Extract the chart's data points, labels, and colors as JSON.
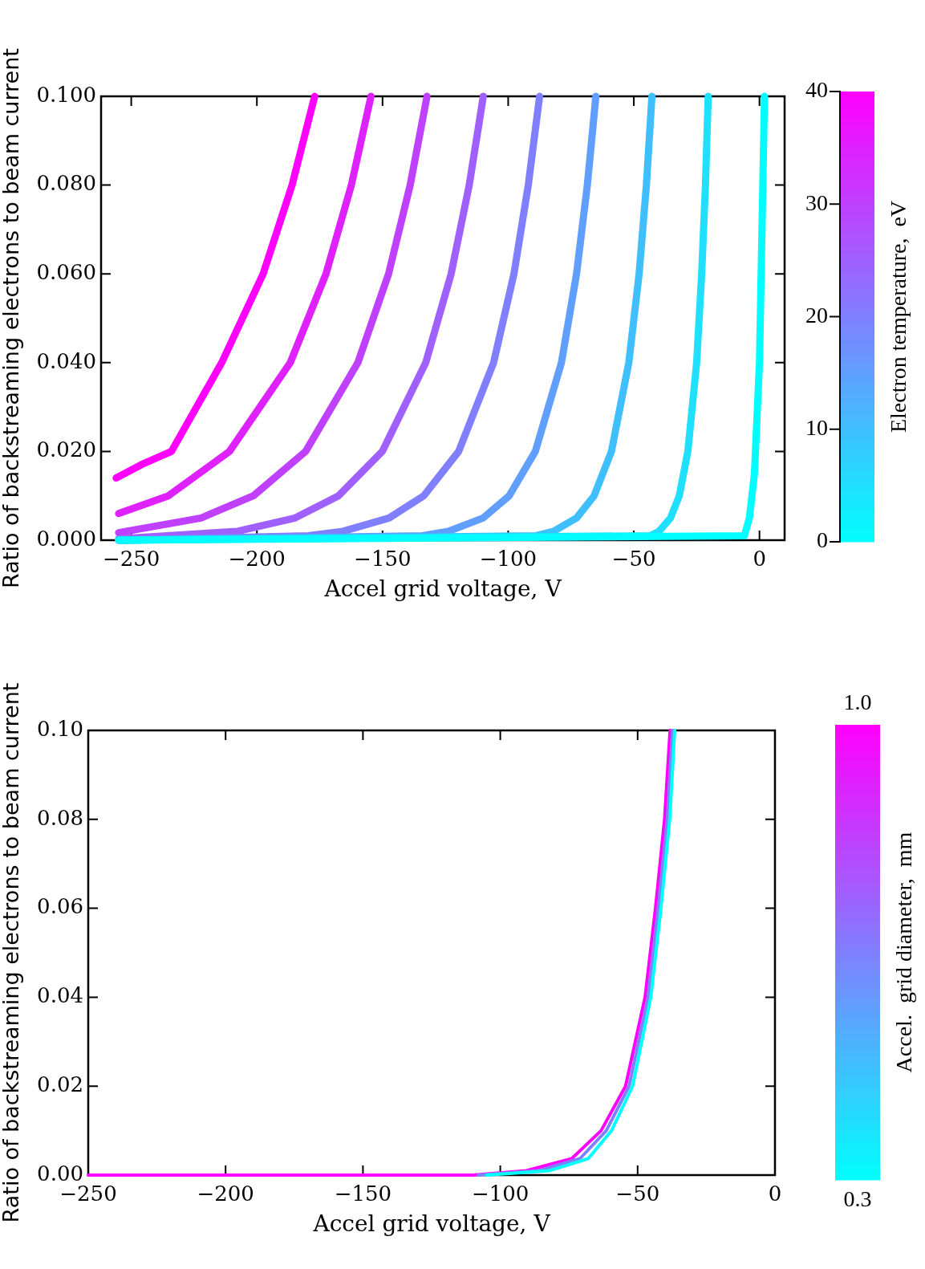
{
  "chart_data": [
    {
      "type": "line",
      "xlabel": "Accel grid voltage, V",
      "ylabel": "Ratio of backstreaming electrons to beam current",
      "clabel": "Electron temperature,  eV",
      "clim": [
        0,
        40
      ],
      "cticks": [
        0,
        10,
        20,
        30,
        40
      ],
      "xlim": [
        -262,
        10
      ],
      "ylim": [
        0,
        0.1
      ],
      "xticks": [
        {
          "value": -250,
          "label": "−250"
        },
        {
          "value": -200,
          "label": "−200"
        },
        {
          "value": -150,
          "label": "−150"
        },
        {
          "value": -100,
          "label": "−100"
        },
        {
          "value": -50,
          "label": "−50"
        },
        0
      ],
      "yticks": [
        {
          "value": 0,
          "label": "0.000"
        },
        {
          "value": 0.02,
          "label": "0.020"
        },
        {
          "value": 0.04,
          "label": "0.040"
        },
        {
          "value": 0.06,
          "label": "0.060"
        },
        {
          "value": 0.08,
          "label": "0.080"
        },
        {
          "value": 0.1,
          "label": "0.100"
        }
      ],
      "grid": false,
      "legend": false,
      "series": [
        {
          "color": "#03fcff",
          "x": [
            -255,
            -6,
            -4,
            -2,
            0,
            1,
            2
          ],
          "values": [
            0,
            0.001,
            0.005,
            0.015,
            0.04,
            0.07,
            0.1
          ]
        },
        {
          "color": "#20dfff",
          "x": [
            -255,
            -43.4,
            -40,
            -35.4,
            -31.9,
            -28.5,
            -25,
            -23,
            -21.5,
            -20.4
          ],
          "values": [
            0,
            0.001,
            0.002,
            0.005,
            0.01,
            0.02,
            0.04,
            0.06,
            0.08,
            0.1
          ]
        },
        {
          "color": "#40bfff",
          "x": [
            -255,
            -88.9,
            -81.9,
            -72.8,
            -65.8,
            -58.9,
            -52,
            -47.9,
            -45,
            -42.8
          ],
          "values": [
            0,
            0.001,
            0.002,
            0.005,
            0.01,
            0.02,
            0.04,
            0.06,
            0.08,
            0.1
          ]
        },
        {
          "color": "#609fff",
          "x": [
            -255,
            -134.2,
            -123.8,
            -110,
            -99.6,
            -89.2,
            -78.8,
            -72.8,
            -68.5,
            -65.1
          ],
          "values": [
            0,
            0.001,
            0.002,
            0.005,
            0.01,
            0.02,
            0.04,
            0.06,
            0.08,
            0.1
          ]
        },
        {
          "color": "#807fff",
          "x": [
            -255,
            -179.6,
            -165.7,
            -147.4,
            -133.6,
            -119.7,
            -105.8,
            -97.7,
            -92,
            -87.5
          ],
          "values": [
            0,
            0.001,
            0.002,
            0.005,
            0.01,
            0.02,
            0.04,
            0.06,
            0.08,
            0.1
          ]
        },
        {
          "color": "#9f60ff",
          "x": [
            -255,
            -207.7,
            -184.8,
            -167.5,
            -150.1,
            -132.8,
            -122.7,
            -115.5,
            -109.9
          ],
          "values": [
            0.0003,
            0.002,
            0.005,
            0.01,
            0.02,
            0.04,
            0.06,
            0.08,
            0.1
          ]
        },
        {
          "color": "#bf40ff",
          "x": [
            -255,
            -222.2,
            -201.4,
            -180.6,
            -159.8,
            -147.6,
            -139,
            -132.3
          ],
          "values": [
            0.0017,
            0.005,
            0.01,
            0.02,
            0.04,
            0.06,
            0.08,
            0.1
          ]
        },
        {
          "color": "#df20ff",
          "x": [
            -255,
            -235.2,
            -210.9,
            -186.7,
            -172.5,
            -162.4,
            -154.6
          ],
          "values": [
            0.006,
            0.01,
            0.02,
            0.04,
            0.06,
            0.08,
            0.1
          ]
        },
        {
          "color": "#ff00ff",
          "x": [
            -256,
            -246,
            -234,
            -214,
            -197.5,
            -186,
            -177
          ],
          "values": [
            0.014,
            0.017,
            0.02,
            0.04,
            0.06,
            0.08,
            0.1
          ]
        }
      ]
    },
    {
      "type": "line",
      "xlabel": "Accel grid voltage, V",
      "ylabel": "Ratio of backstreaming electrons to beam current",
      "clabel": "Accel.  grid diameter,  mm",
      "clim": [
        0.3,
        1
      ],
      "cticks": [
        0.3,
        {
          "value": 1,
          "label": "1.0"
        }
      ],
      "xlim": [
        -250,
        0
      ],
      "ylim": [
        0,
        0.1
      ],
      "xticks": [
        {
          "value": -250,
          "label": "−250"
        },
        {
          "value": -200,
          "label": "−200"
        },
        {
          "value": -150,
          "label": "−150"
        },
        {
          "value": -100,
          "label": "−100"
        },
        {
          "value": -50,
          "label": "−50"
        },
        0
      ],
      "yticks": [
        {
          "value": 0,
          "label": "0.00"
        },
        {
          "value": 0.02,
          "label": "0.02"
        },
        {
          "value": 0.04,
          "label": "0.04"
        },
        {
          "value": 0.06,
          "label": "0.06"
        },
        {
          "value": 0.08,
          "label": "0.08"
        },
        {
          "value": 0.1,
          "label": "0.10"
        }
      ],
      "grid": false,
      "legend": false,
      "series": [
        {
          "color": "#00ffff",
          "x": [
            -105,
            -82,
            -68,
            -59.5,
            -51.8,
            -45.2,
            -41.5,
            -38.3,
            -36.5
          ],
          "values": [
            0,
            0.001,
            0.0037,
            0.01,
            0.02,
            0.04,
            0.06,
            0.08,
            0.1
          ]
        },
        {
          "color": "#7f80ff",
          "x": [
            -108,
            -86,
            -71,
            -61.4,
            -53.1,
            -46.2,
            -42.5,
            -39.2,
            -37.3
          ],
          "values": [
            0,
            0.001,
            0.0037,
            0.01,
            0.02,
            0.04,
            0.06,
            0.08,
            0.1
          ]
        },
        {
          "color": "#ff00ff",
          "x": [
            -250,
            -110,
            -90.5,
            -74,
            -63.3,
            -54.4,
            -47.3,
            -43.5,
            -40.2,
            -38.2
          ],
          "values": [
            0,
            0,
            0.001,
            0.0037,
            0.01,
            0.02,
            0.04,
            0.06,
            0.08,
            0.1
          ]
        }
      ]
    }
  ]
}
